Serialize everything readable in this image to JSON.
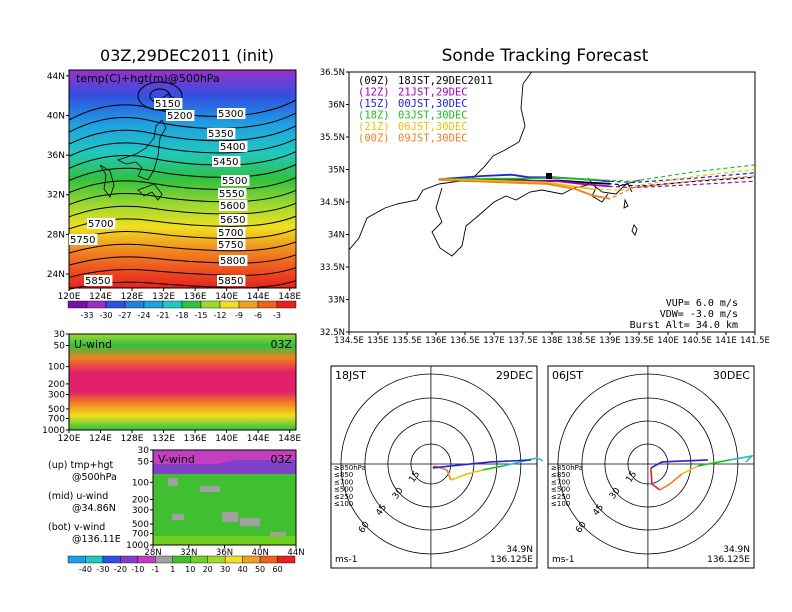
{
  "page_title": "Sonde Tracking Forecast",
  "init_title": "03Z,29DEC2011 (init)",
  "chart_data": [
    {
      "id": "map500",
      "type": "heatmap",
      "title": "temp(C)+hgt(m)@500hPa",
      "x_ticks": [
        "120E",
        "124E",
        "128E",
        "132E",
        "136E",
        "140E",
        "144E",
        "148E"
      ],
      "y_ticks": [
        "24N",
        "28N",
        "32N",
        "36N",
        "40N",
        "44N"
      ],
      "contour_labels": [
        "5150",
        "5200",
        "5300",
        "5350",
        "5400",
        "5450",
        "5500",
        "5550",
        "5600",
        "5650",
        "5700",
        "5700",
        "5750",
        "5750",
        "5800",
        "5850",
        "5850"
      ],
      "colorbar": [
        "-33",
        "-30",
        "-27",
        "-24",
        "-21",
        "-18",
        "-15",
        "-12",
        "-9",
        "-6",
        "-3"
      ]
    },
    {
      "id": "uwind",
      "type": "heatmap",
      "label": "U-wind",
      "time": "03Z",
      "y_ticks": [
        "30",
        "50",
        "100",
        "200",
        "300",
        "500",
        "700",
        "1000"
      ],
      "x_ticks": [
        "120E",
        "124E",
        "128E",
        "132E",
        "136E",
        "140E",
        "144E",
        "148E"
      ]
    },
    {
      "id": "vwind",
      "type": "heatmap",
      "label": "V-wind",
      "time": "03Z",
      "y_ticks": [
        "30",
        "50",
        "100",
        "200",
        "300",
        "500",
        "700",
        "1000"
      ],
      "x_ticks": [
        "28N",
        "32N",
        "36N",
        "40N",
        "44N"
      ],
      "colorbar": [
        "-40",
        "-30",
        "-20",
        "-10",
        "-1",
        "1",
        "10",
        "20",
        "30",
        "40",
        "50",
        "60"
      ]
    },
    {
      "id": "track",
      "type": "line",
      "x_ticks": [
        "134.5E",
        "135E",
        "135.5E",
        "136E",
        "136.5E",
        "137E",
        "137.5E",
        "138E",
        "138.5E",
        "139E",
        "139.5E",
        "140E",
        "140.5E",
        "141E",
        "141.5E"
      ],
      "y_ticks": [
        "32.5N",
        "33N",
        "33.5N",
        "34N",
        "34.5N",
        "35N",
        "35.5N",
        "36N",
        "36.5N"
      ],
      "xlim": [
        134.5,
        141.5
      ],
      "ylim": [
        32.5,
        36.5
      ],
      "legend": [
        {
          "code": "(09Z)",
          "label": "18JST,29DEC2011",
          "color": "#000000"
        },
        {
          "code": "(12Z)",
          "label": "21JST,29DEC",
          "color": "#a000c8"
        },
        {
          "code": "(15Z)",
          "label": "00JST,30DEC",
          "color": "#2020e0"
        },
        {
          "code": "(18Z)",
          "label": "03JST,30DEC",
          "color": "#20c020"
        },
        {
          "code": "(21Z)",
          "label": "06JST,30DEC",
          "color": "#f0c000"
        },
        {
          "code": "(00Z)",
          "label": "09JST,30DEC",
          "color": "#f08020"
        }
      ],
      "series": [
        {
          "color": "#000000",
          "points": [
            [
              136.05,
              34.85
            ],
            [
              136.6,
              34.84
            ],
            [
              137.2,
              34.85
            ],
            [
              137.7,
              34.82
            ],
            [
              138.1,
              34.83
            ],
            [
              138.6,
              34.8
            ],
            [
              139.0,
              34.78
            ],
            [
              139.4,
              34.75
            ],
            [
              139.6,
              34.75
            ],
            [
              140.5,
              34.82
            ],
            [
              141.5,
              34.88
            ]
          ]
        },
        {
          "color": "#a000c8",
          "points": [
            [
              136.05,
              34.85
            ],
            [
              136.6,
              34.82
            ],
            [
              137.2,
              34.83
            ],
            [
              137.7,
              34.82
            ],
            [
              138.1,
              34.82
            ],
            [
              138.5,
              34.78
            ],
            [
              139.0,
              34.74
            ],
            [
              139.4,
              34.72
            ],
            [
              140.5,
              34.77
            ],
            [
              141.5,
              34.82
            ]
          ]
        },
        {
          "color": "#2020e0",
          "points": [
            [
              136.05,
              34.85
            ],
            [
              136.8,
              34.9
            ],
            [
              137.3,
              34.92
            ],
            [
              137.6,
              34.88
            ],
            [
              138.0,
              34.88
            ],
            [
              138.4,
              34.86
            ],
            [
              139.0,
              34.82
            ],
            [
              139.4,
              34.8
            ],
            [
              140.5,
              34.87
            ],
            [
              141.5,
              34.95
            ]
          ]
        },
        {
          "color": "#20c020",
          "points": [
            [
              136.05,
              34.85
            ],
            [
              137.0,
              34.86
            ],
            [
              137.6,
              34.86
            ],
            [
              138.1,
              34.87
            ],
            [
              138.8,
              34.84
            ],
            [
              139.4,
              34.82
            ],
            [
              140.5,
              34.97
            ],
            [
              141.5,
              35.07
            ]
          ]
        },
        {
          "color": "#f0c000",
          "points": [
            [
              136.05,
              34.85
            ],
            [
              137.2,
              34.82
            ],
            [
              137.9,
              34.8
            ],
            [
              138.3,
              34.75
            ],
            [
              138.7,
              34.7
            ],
            [
              139.2,
              34.68
            ],
            [
              139.5,
              34.76
            ],
            [
              140.5,
              34.9
            ],
            [
              141.5,
              35.0
            ]
          ]
        },
        {
          "color": "#f08020",
          "points": [
            [
              136.05,
              34.84
            ],
            [
              137.2,
              34.8
            ],
            [
              137.9,
              34.78
            ],
            [
              138.4,
              34.7
            ],
            [
              138.7,
              34.6
            ],
            [
              139.0,
              34.55
            ],
            [
              139.4,
              34.72
            ],
            [
              140.5,
              34.83
            ],
            [
              141.5,
              34.9
            ]
          ]
        }
      ],
      "params": {
        "vup": "VUP= 6.0 m/s",
        "vdw": "VDW= -3.0 m/s",
        "burst": "Burst Alt= 34.0 km"
      }
    },
    {
      "id": "hodo1",
      "type": "line",
      "left_label": "18JST",
      "right_label": "29DEC",
      "ring_labels": [
        "15",
        "30",
        "45",
        "60"
      ],
      "levels": [
        {
          "label": "≥850hPa",
          "color": "#e02020"
        },
        {
          "label": "≤850",
          "color": "#f08020"
        },
        {
          "label": "≤700",
          "color": "#f0c000"
        },
        {
          "label": "≤500",
          "color": "#20c020"
        },
        {
          "label": "≤250",
          "color": "#20c0c0"
        },
        {
          "label": "≤100",
          "color": "#2020e0"
        }
      ],
      "unit": "ms-1",
      "lat": "34.9N",
      "lon": "136.125E"
    },
    {
      "id": "hodo2",
      "type": "line",
      "left_label": "06JST",
      "right_label": "30DEC",
      "ring_labels": [
        "15",
        "30",
        "45",
        "60"
      ],
      "levels": [
        {
          "label": "≥850hPa",
          "color": "#e02020"
        },
        {
          "label": "≤850",
          "color": "#f08020"
        },
        {
          "label": "≤700",
          "color": "#f0c000"
        },
        {
          "label": "≤500",
          "color": "#20c020"
        },
        {
          "label": "≤250",
          "color": "#20c0c0"
        },
        {
          "label": "≤100",
          "color": "#2020e0"
        }
      ],
      "unit": "ms-1",
      "lat": "34.9N",
      "lon": "136.125E"
    }
  ],
  "side_notes": [
    {
      "line1": "(up) tmp+hgt",
      "line2": "@500hPa"
    },
    {
      "line1": "(mid) u-wind",
      "line2": "@34.86N"
    },
    {
      "line1": "(bot) v-wind",
      "line2": "@136.11E"
    }
  ]
}
